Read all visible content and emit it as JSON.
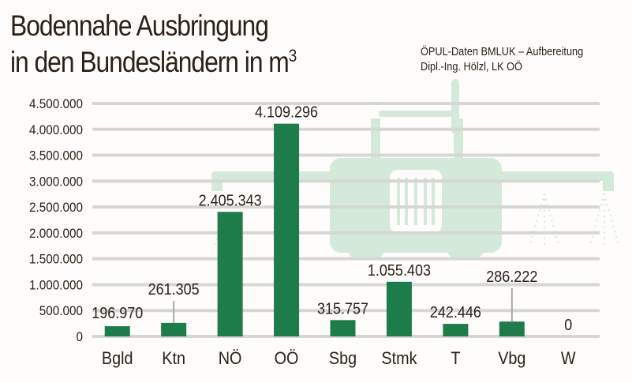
{
  "chart_data": {
    "type": "bar",
    "title_line1": "Bodennahe Ausbringung",
    "title_line2": "in den Bundesländern in m",
    "title_sup": "3",
    "source_line1": "ÖPUL-Daten BMLUK – Aufbereitung",
    "source_line2": "Dipl.-Ing. Hölzl, LK OÖ",
    "categories": [
      "Bgld",
      "Ktn",
      "NÖ",
      "OÖ",
      "Sbg",
      "Stmk",
      "T",
      "Vbg",
      "W"
    ],
    "values": [
      196970,
      261305,
      2405343,
      4109296,
      315757,
      1055403,
      242446,
      286222,
      0
    ],
    "value_labels": [
      "196.970",
      "261.305",
      "2.405.343",
      "4.109.296",
      "315.757",
      "1.055.403",
      "242.446",
      "286.222",
      "0"
    ],
    "yticks": [
      0,
      500000,
      1000000,
      1500000,
      2000000,
      2500000,
      3000000,
      3500000,
      4000000,
      4500000
    ],
    "ytick_labels": [
      "0",
      "500.000",
      "1.000.000",
      "1.500.000",
      "2.000.000",
      "2.500.000",
      "3.000.000",
      "3.500.000",
      "4.000.000",
      "4.500.000"
    ],
    "ylim": [
      0,
      4500000
    ],
    "grid": true,
    "colors": {
      "bar": "#1e7b4a",
      "grid": "#d6d6d4",
      "watermark": "#d4e9da",
      "leader": "#a8a8a8"
    },
    "background_icon": "tractor-icon"
  }
}
